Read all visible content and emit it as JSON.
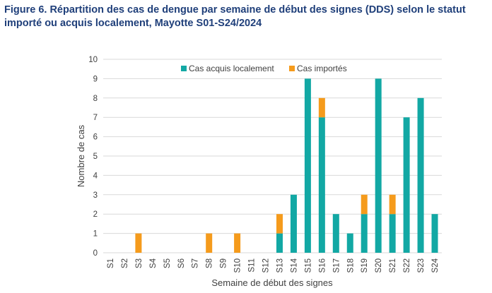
{
  "title": "Figure 6. Répartition des cas de dengue par semaine de début des signes (DDS) selon le statut importé ou acquis localement, Mayotte S01-S24/2024",
  "colors": {
    "local": "#12a8a4",
    "imported": "#f59b1c",
    "grid": "#d9d9d9",
    "title": "#1f3f7a",
    "text": "#404040"
  },
  "chart_data": {
    "type": "bar",
    "stacked": true,
    "categories": [
      "S1",
      "S2",
      "S3",
      "S4",
      "S5",
      "S6",
      "S7",
      "S8",
      "S9",
      "S10",
      "S11",
      "S12",
      "S13",
      "S14",
      "S15",
      "S16",
      "S17",
      "S18",
      "S19",
      "S20",
      "S21",
      "S22",
      "S23",
      "S24"
    ],
    "series": [
      {
        "name": "Cas acquis localement",
        "color": "#12a8a4",
        "values": [
          0,
          0,
          0,
          0,
          0,
          0,
          0,
          0,
          0,
          0,
          0,
          0,
          1,
          3,
          9,
          7,
          2,
          1,
          2,
          9,
          2,
          7,
          8,
          2
        ]
      },
      {
        "name": "Cas importés",
        "color": "#f59b1c",
        "values": [
          0,
          0,
          1,
          0,
          0,
          0,
          0,
          1,
          0,
          1,
          0,
          0,
          1,
          0,
          0,
          1,
          0,
          0,
          1,
          0,
          1,
          0,
          0,
          0
        ]
      }
    ],
    "xlabel": "Semaine de début des signes",
    "ylabel": "Nombre de cas",
    "ylim": [
      0,
      10
    ],
    "yticks": [
      0,
      1,
      2,
      3,
      4,
      5,
      6,
      7,
      8,
      9,
      10
    ],
    "grid": true,
    "legend_position": "top-center"
  }
}
